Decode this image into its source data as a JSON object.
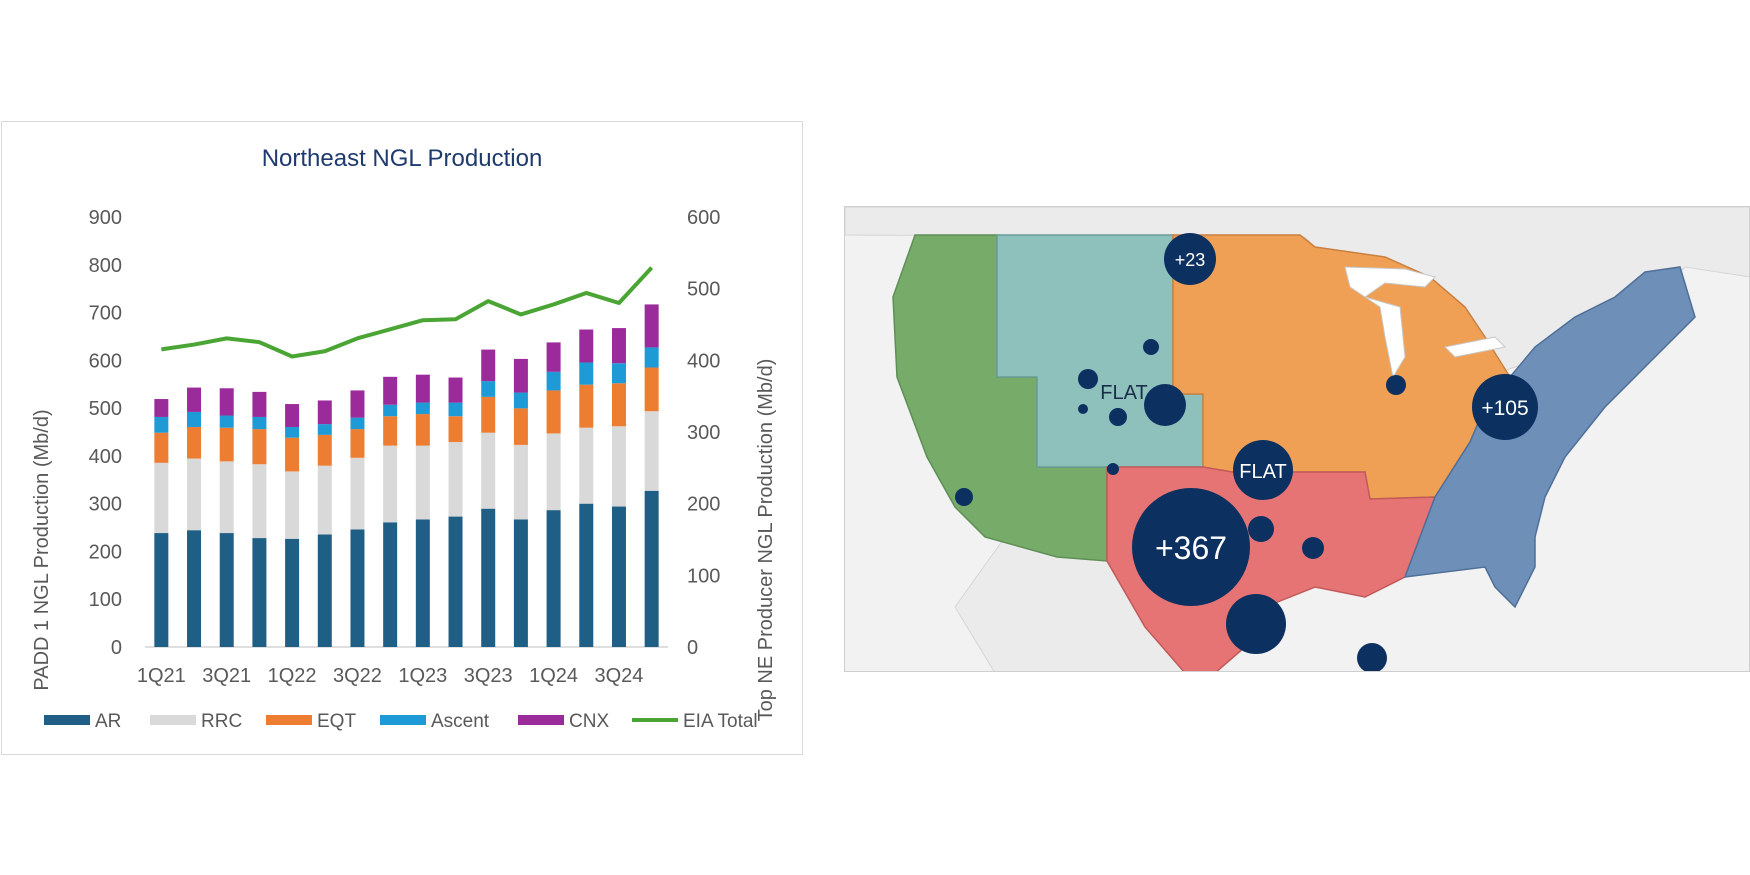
{
  "colors": {
    "AR": "#1f5f86",
    "RRC": "#d9d9d9",
    "EQT": "#ed7d31",
    "Ascent": "#1e9ad6",
    "CNX": "#9b2b9b",
    "EIA Total": "#4aa534",
    "title": "#1f3a6e",
    "bubble": "#0c3060",
    "region_west": "#76ab6a",
    "region_rockies": "#8ec0bc",
    "region_midwest": "#f0a055",
    "region_gulf": "#e67474",
    "region_east": "#6d8fb8"
  },
  "chart_data": {
    "type": "bar",
    "stacked": true,
    "title": "Northeast NGL Production",
    "ylabel": "PADD 1 NGL Production (Mb/d)",
    "y2label": "Top NE Producer NGL Production (Mb/d)",
    "ylim": [
      0,
      900
    ],
    "y2lim": [
      0,
      600
    ],
    "yticks": [
      "900",
      "800",
      "700",
      "600",
      "500",
      "400",
      "300",
      "200",
      "100",
      "0"
    ],
    "y2ticks": [
      "600",
      "500",
      "400",
      "300",
      "200",
      "100",
      "0"
    ],
    "categories": [
      "1Q21",
      "2Q21",
      "3Q21",
      "4Q21",
      "1Q22",
      "2Q22",
      "3Q22",
      "4Q22",
      "1Q23",
      "2Q23",
      "3Q23",
      "4Q23",
      "1Q24",
      "2Q24",
      "3Q24",
      "4Q24"
    ],
    "xtick_labels": [
      "1Q21",
      "3Q21",
      "1Q22",
      "3Q22",
      "1Q23",
      "3Q23",
      "1Q24",
      "3Q24"
    ],
    "series": [
      {
        "name": "AR",
        "axis": "y2",
        "values": [
          159,
          163,
          159,
          152,
          151,
          157,
          164,
          174,
          178,
          182,
          193,
          178,
          191,
          200,
          196,
          218
        ]
      },
      {
        "name": "RRC",
        "axis": "y2",
        "values": [
          98,
          100,
          100,
          103,
          94,
          96,
          100,
          107,
          103,
          104,
          106,
          104,
          107,
          106,
          112,
          111
        ]
      },
      {
        "name": "EQT",
        "axis": "y2",
        "values": [
          42,
          44,
          47,
          49,
          47,
          43,
          40,
          41,
          44,
          36,
          50,
          51,
          60,
          60,
          60,
          61
        ]
      },
      {
        "name": "Ascent",
        "axis": "y2",
        "values": [
          22,
          21,
          17,
          17,
          15,
          15,
          16,
          16,
          16,
          19,
          22,
          22,
          26,
          31,
          28,
          28
        ]
      },
      {
        "name": "CNX",
        "axis": "y2",
        "values": [
          25,
          34,
          38,
          35,
          32,
          33,
          38,
          39,
          39,
          35,
          44,
          47,
          41,
          46,
          49,
          60
        ]
      },
      {
        "name": "EIA Total",
        "type": "line",
        "axis": "y",
        "values": [
          623,
          633,
          646,
          638,
          608,
          619,
          646,
          665,
          684,
          686,
          724,
          696,
          717,
          741,
          720,
          794
        ]
      }
    ],
    "legend": "bottom"
  },
  "map": {
    "bubbles": [
      {
        "label": "+23"
      },
      {
        "label": "FLAT"
      },
      {
        "label": "FLAT"
      },
      {
        "label": "+105"
      },
      {
        "label": "+367"
      }
    ]
  }
}
